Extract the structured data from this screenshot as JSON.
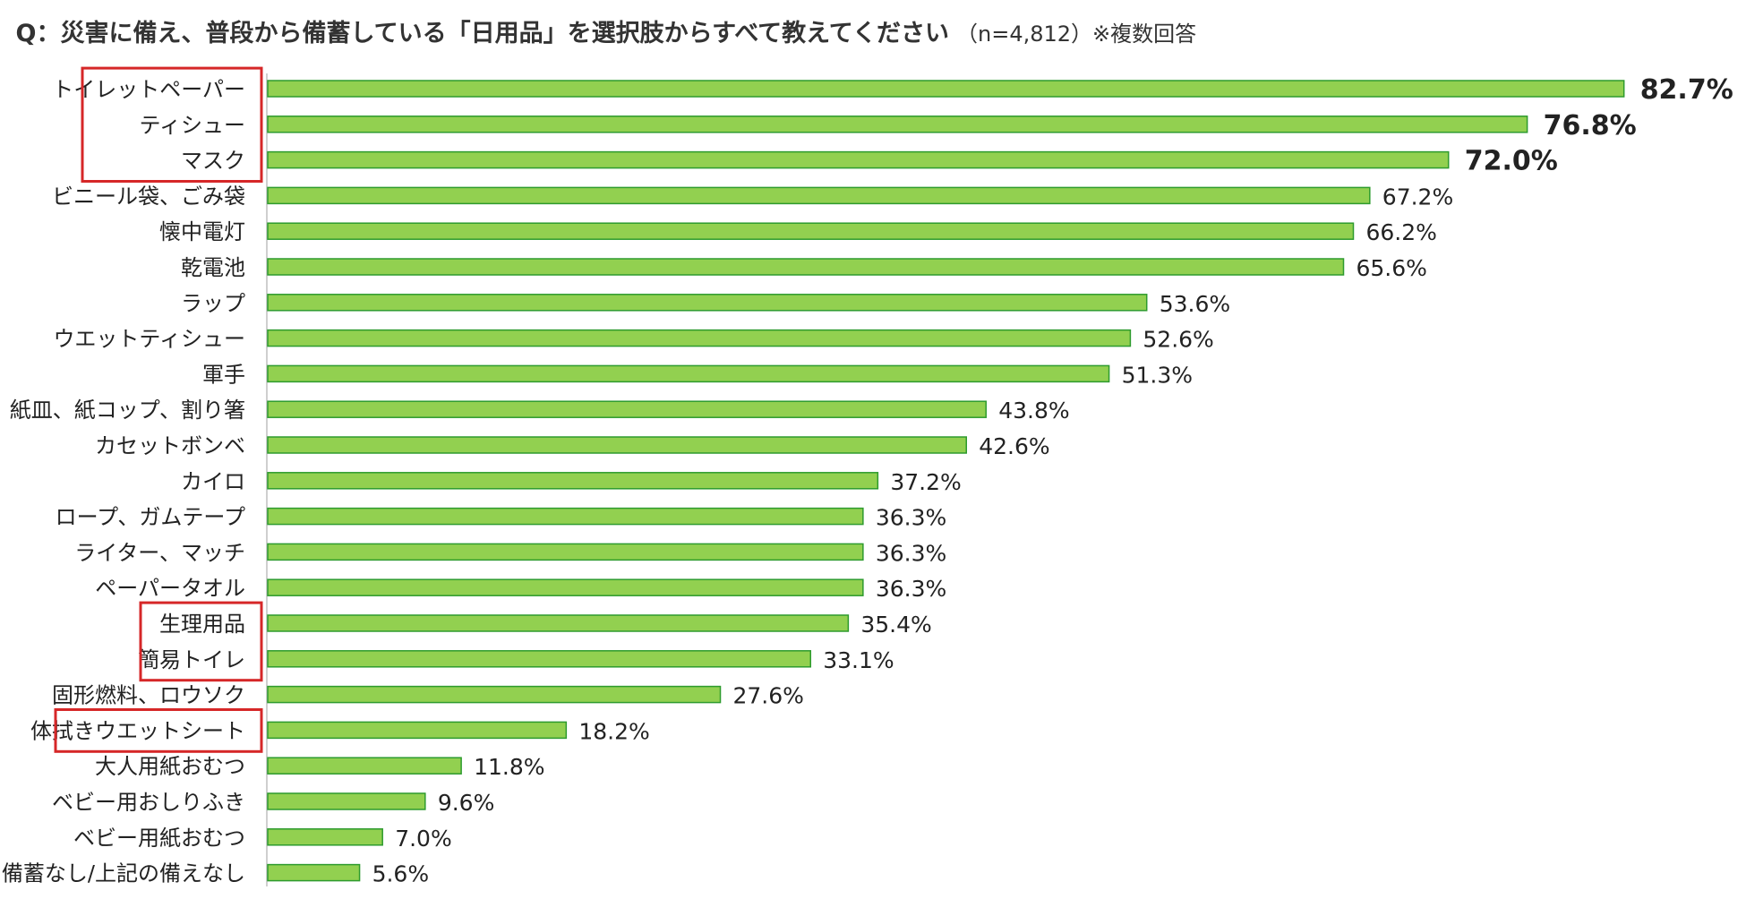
{
  "chart_data": {
    "type": "bar",
    "orientation": "horizontal",
    "title": "Q：災害に備え、普段から備蓄している「日用品」を選択肢からすべて教えてください",
    "subtitle": "（n=4,812）※複数回答",
    "xlim": [
      0,
      100
    ],
    "grid": false,
    "legend": "none",
    "bar_color": "#92d050",
    "bar_edge_color": "#2e9b2e",
    "highlight_color": "#d62728",
    "unit": "%",
    "categories": [
      "トイレットペーパー",
      "ティシュー",
      "マスク",
      "ビニール袋、ごみ袋",
      "懐中電灯",
      "乾電池",
      "ラップ",
      "ウエットティシュー",
      "軍手",
      "紙皿、紙コップ、割り箸",
      "カセットボンベ",
      "カイロ",
      "ロープ、ガムテープ",
      "ライター、マッチ",
      "ペーパータオル",
      "生理用品",
      "簡易トイレ",
      "固形燃料、ロウソク",
      "体拭きウエットシート",
      "大人用紙おむつ",
      "ベビー用おしりふき",
      "ベビー用紙おむつ",
      "備蓄なし/上記の備えなし"
    ],
    "values": [
      82.7,
      76.8,
      72.0,
      67.2,
      66.2,
      65.6,
      53.6,
      52.6,
      51.3,
      43.8,
      42.6,
      37.2,
      36.3,
      36.3,
      36.3,
      35.4,
      33.1,
      27.6,
      18.2,
      11.8,
      9.6,
      7.0,
      5.6
    ],
    "value_labels": [
      "82.7%",
      "76.8%",
      "72.0%",
      "67.2%",
      "66.2%",
      "65.6%",
      "53.6%",
      "52.6%",
      "51.3%",
      "43.8%",
      "42.6%",
      "37.2%",
      "36.3%",
      "36.3%",
      "36.3%",
      "35.4%",
      "33.1%",
      "27.6%",
      "18.2%",
      "11.8%",
      "9.6%",
      "7.0%",
      "5.6%"
    ],
    "emphasized_labels": [
      0,
      1,
      2
    ],
    "highlighted_groups": [
      [
        0,
        2
      ],
      [
        15,
        16
      ],
      [
        18,
        18
      ]
    ]
  }
}
